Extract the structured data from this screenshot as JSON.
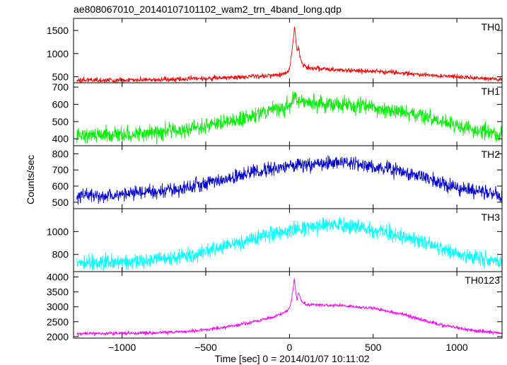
{
  "chart_data": {
    "type": "line",
    "title": "ae808067010_20140107101102_wam2_trn_4band_long.qdp",
    "xlabel": "Time [sec] 0 = 2014/01/07 10:11:02",
    "ylabel": "Counts/sec",
    "xlim": [
      -1290,
      1270
    ],
    "xticks": [
      -1000,
      -500,
      0,
      500,
      1000
    ],
    "xtick_labels": [
      "−1000",
      "−500",
      "0",
      "500",
      "1000"
    ],
    "grid": false,
    "panels": [
      {
        "name": "TH0",
        "color": "#ff0000",
        "ylim": [
          370,
          1760
        ],
        "yticks": [
          500,
          1000,
          1500
        ],
        "noise": 35,
        "x": [
          -1270,
          -1000,
          -800,
          -600,
          -400,
          -250,
          -150,
          -60,
          -20,
          0,
          10,
          20,
          30,
          38,
          45,
          55,
          65,
          80,
          100,
          150,
          250,
          400,
          600,
          800,
          1000,
          1150,
          1270
        ],
        "y": [
          420,
          430,
          440,
          455,
          480,
          500,
          520,
          540,
          580,
          660,
          900,
          1200,
          1600,
          1300,
          1050,
          1150,
          900,
          760,
          700,
          680,
          660,
          630,
          600,
          540,
          500,
          470,
          440
        ]
      },
      {
        "name": "TH1",
        "color": "#00ee00",
        "ylim": [
          360,
          725
        ],
        "yticks": [
          400,
          500,
          600,
          700
        ],
        "noise": 32,
        "x": [
          -1270,
          -1000,
          -800,
          -600,
          -400,
          -250,
          -100,
          0,
          20,
          35,
          50,
          80,
          150,
          300,
          500,
          700,
          900,
          1100,
          1270
        ],
        "y": [
          420,
          425,
          435,
          455,
          490,
          525,
          565,
          590,
          620,
          650,
          625,
          610,
          605,
          600,
          585,
          555,
          505,
          455,
          420
        ]
      },
      {
        "name": "TH2",
        "color": "#0000cc",
        "ylim": [
          460,
          850
        ],
        "yticks": [
          500,
          600,
          700,
          800
        ],
        "noise": 30,
        "x": [
          -1270,
          -1000,
          -800,
          -600,
          -400,
          -200,
          0,
          200,
          300,
          400,
          600,
          800,
          1000,
          1270
        ],
        "y": [
          540,
          545,
          560,
          590,
          640,
          690,
          725,
          745,
          748,
          740,
          705,
          650,
          590,
          540
        ]
      },
      {
        "name": "TH3",
        "color": "#00ffff",
        "ylim": [
          650,
          1200
        ],
        "yticks": [
          800,
          1000
        ],
        "noise": 45,
        "x": [
          -1270,
          -1000,
          -800,
          -600,
          -400,
          -200,
          0,
          200,
          300,
          400,
          600,
          800,
          1000,
          1270
        ],
        "y": [
          730,
          735,
          750,
          790,
          860,
          940,
          1010,
          1055,
          1060,
          1050,
          990,
          900,
          810,
          730
        ]
      },
      {
        "name": "TH0123",
        "color": "#ff00ff",
        "ylim": [
          1950,
          4180
        ],
        "yticks": [
          2000,
          2500,
          3000,
          3500,
          4000
        ],
        "noise": 40,
        "x": [
          -1270,
          -1000,
          -800,
          -600,
          -400,
          -250,
          -100,
          -20,
          0,
          15,
          28,
          38,
          45,
          55,
          70,
          100,
          150,
          300,
          500,
          700,
          900,
          1100,
          1270
        ],
        "y": [
          2100,
          2110,
          2130,
          2180,
          2300,
          2450,
          2650,
          2850,
          2950,
          3300,
          3950,
          3500,
          3250,
          3500,
          3200,
          3080,
          3070,
          3050,
          2950,
          2720,
          2400,
          2200,
          2120
        ]
      }
    ]
  }
}
